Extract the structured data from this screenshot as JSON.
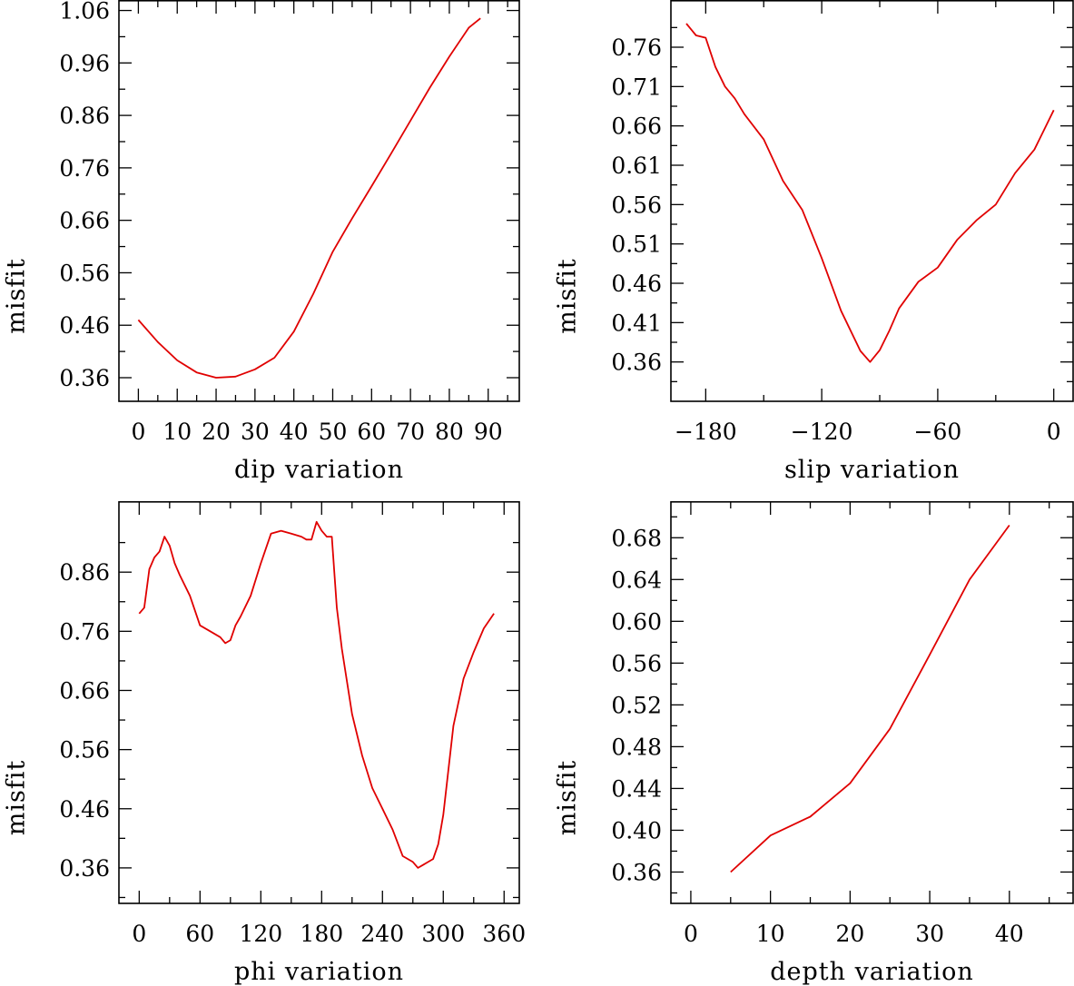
{
  "chart_data": [
    {
      "type": "line",
      "xlabel": "dip    variation",
      "ylabel": "misfit",
      "xlim": [
        -5,
        98
      ],
      "ylim": [
        0.315,
        1.08
      ],
      "xticks": [
        0,
        10,
        20,
        30,
        40,
        50,
        60,
        70,
        80,
        90
      ],
      "xtick_labels": [
        "0",
        "10",
        "20",
        "30",
        "40",
        "50",
        "60",
        "70",
        "80",
        "90"
      ],
      "yticks": [
        0.36,
        0.46,
        0.56,
        0.66,
        0.76,
        0.86,
        0.96,
        1.06
      ],
      "ytick_labels": [
        "0.36",
        "0.46",
        "0.56",
        "0.66",
        "0.76",
        "0.86",
        "0.96",
        "1.06"
      ],
      "series": [
        {
          "name": "dip",
          "color": "#e00000",
          "x": [
            0,
            5,
            10,
            15,
            20,
            25,
            30,
            35,
            40,
            45,
            50,
            55,
            60,
            65,
            70,
            75,
            80,
            85,
            88
          ],
          "y": [
            0.47,
            0.428,
            0.393,
            0.37,
            0.36,
            0.362,
            0.376,
            0.398,
            0.448,
            0.52,
            0.6,
            0.664,
            0.725,
            0.787,
            0.85,
            0.913,
            0.972,
            1.027,
            1.045
          ]
        }
      ]
    },
    {
      "type": "line",
      "xlabel": "slip    variation",
      "ylabel": "misfit",
      "xlim": [
        -198,
        10
      ],
      "ylim": [
        0.31,
        0.82
      ],
      "xticks": [
        -180,
        -120,
        -60,
        0
      ],
      "xtick_labels": [
        "−180",
        "−120",
        "−60",
        "0"
      ],
      "yticks": [
        0.36,
        0.41,
        0.46,
        0.51,
        0.56,
        0.61,
        0.66,
        0.71,
        0.76
      ],
      "ytick_labels": [
        "0.36",
        "0.41",
        "0.46",
        "0.51",
        "0.56",
        "0.61",
        "0.66",
        "0.71",
        "0.76"
      ],
      "series": [
        {
          "name": "slip",
          "color": "#e00000",
          "x": [
            -190,
            -185,
            -180,
            -175,
            -170,
            -165,
            -160,
            -150,
            -140,
            -130,
            -120,
            -110,
            -100,
            -95,
            -90,
            -85,
            -80,
            -70,
            -60,
            -50,
            -40,
            -30,
            -20,
            -10,
            0
          ],
          "y": [
            0.79,
            0.775,
            0.772,
            0.735,
            0.71,
            0.695,
            0.675,
            0.643,
            0.59,
            0.553,
            0.492,
            0.425,
            0.374,
            0.36,
            0.375,
            0.4,
            0.428,
            0.462,
            0.48,
            0.515,
            0.54,
            0.56,
            0.6,
            0.63,
            0.68
          ]
        }
      ]
    },
    {
      "type": "line",
      "xlabel": "phi    variation",
      "ylabel": "misfit",
      "xlim": [
        -20,
        375
      ],
      "ylim": [
        0.3,
        0.98
      ],
      "xticks": [
        0,
        60,
        120,
        180,
        240,
        300,
        360
      ],
      "xtick_labels": [
        "0",
        "60",
        "120",
        "180",
        "240",
        "300",
        "360"
      ],
      "yticks": [
        0.36,
        0.46,
        0.56,
        0.66,
        0.76,
        0.86
      ],
      "ytick_labels": [
        "0.36",
        "0.46",
        "0.56",
        "0.66",
        "0.76",
        "0.86"
      ],
      "series": [
        {
          "name": "phi",
          "color": "#e00000",
          "x": [
            0,
            5,
            10,
            15,
            20,
            25,
            30,
            35,
            40,
            50,
            60,
            70,
            80,
            85,
            90,
            95,
            100,
            110,
            120,
            130,
            140,
            150,
            160,
            165,
            170,
            175,
            180,
            185,
            190,
            195,
            200,
            210,
            220,
            230,
            240,
            250,
            260,
            270,
            275,
            280,
            285,
            290,
            295,
            300,
            310,
            320,
            330,
            340,
            350
          ],
          "y": [
            0.79,
            0.8,
            0.865,
            0.885,
            0.895,
            0.92,
            0.905,
            0.875,
            0.855,
            0.82,
            0.77,
            0.76,
            0.75,
            0.74,
            0.745,
            0.77,
            0.785,
            0.82,
            0.875,
            0.925,
            0.93,
            0.925,
            0.92,
            0.915,
            0.915,
            0.945,
            0.93,
            0.92,
            0.92,
            0.8,
            0.73,
            0.62,
            0.55,
            0.495,
            0.46,
            0.425,
            0.38,
            0.37,
            0.36,
            0.365,
            0.37,
            0.375,
            0.4,
            0.45,
            0.6,
            0.68,
            0.725,
            0.765,
            0.79
          ]
        }
      ]
    },
    {
      "type": "line",
      "xlabel": "depth    variation",
      "ylabel": "misfit",
      "xlim": [
        -2.5,
        48
      ],
      "ylim": [
        0.33,
        0.715
      ],
      "xticks": [
        0,
        10,
        20,
        30,
        40
      ],
      "xtick_labels": [
        "0",
        "10",
        "20",
        "30",
        "40"
      ],
      "yticks": [
        0.36,
        0.4,
        0.44,
        0.48,
        0.52,
        0.56,
        0.6,
        0.64,
        0.68
      ],
      "ytick_labels": [
        "0.36",
        "0.40",
        "0.44",
        "0.48",
        "0.52",
        "0.56",
        "0.60",
        "0.64",
        "0.68"
      ],
      "series": [
        {
          "name": "depth",
          "color": "#e00000",
          "x": [
            5,
            10,
            15,
            20,
            25,
            30,
            35,
            40
          ],
          "y": [
            0.36,
            0.395,
            0.413,
            0.445,
            0.497,
            0.568,
            0.64,
            0.692
          ]
        }
      ]
    }
  ]
}
